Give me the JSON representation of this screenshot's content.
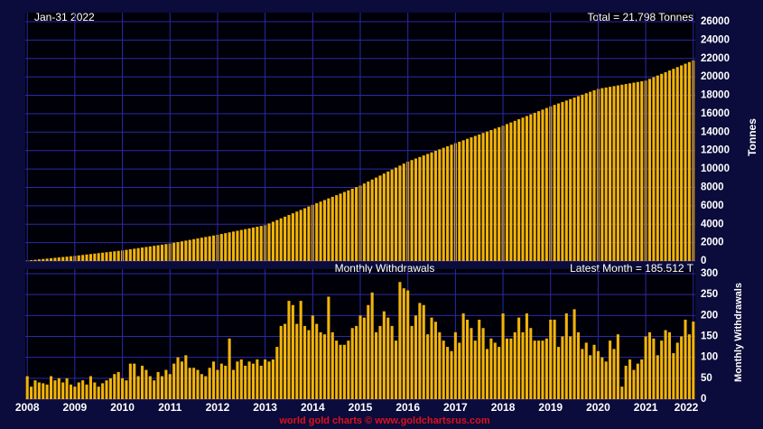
{
  "chart_data": [
    {
      "type": "bar",
      "date": "Jan-31  2022",
      "annotation": "Total = 21,798 Tonnes",
      "ylabel": "Tonnes",
      "color": "#f2b40a",
      "ylim": [
        0,
        26000
      ],
      "yticks": [
        0,
        2000,
        4000,
        6000,
        8000,
        10000,
        12000,
        14000,
        16000,
        18000,
        20000,
        22000,
        24000,
        26000
      ],
      "grid": true,
      "values": [
        50,
        93,
        135,
        178,
        220,
        263,
        305,
        348,
        390,
        433,
        475,
        518,
        560,
        609,
        658,
        708,
        757,
        806,
        855,
        904,
        954,
        1003,
        1052,
        1101,
        1150,
        1213,
        1275,
        1338,
        1400,
        1463,
        1525,
        1588,
        1650,
        1713,
        1775,
        1838,
        1900,
        1979,
        2058,
        2138,
        2217,
        2296,
        2375,
        2454,
        2533,
        2613,
        2692,
        2771,
        2850,
        2938,
        3025,
        3113,
        3200,
        3288,
        3375,
        3463,
        3550,
        3638,
        3725,
        3813,
        3900,
        4083,
        4267,
        4450,
        4633,
        4817,
        5000,
        5183,
        5367,
        5550,
        5733,
        5917,
        6100,
        6275,
        6450,
        6625,
        6800,
        6975,
        7150,
        7325,
        7500,
        7675,
        7850,
        8025,
        8200,
        8417,
        8633,
        8850,
        9067,
        9283,
        9500,
        9717,
        9933,
        10150,
        10367,
        10583,
        10800,
        10967,
        11133,
        11300,
        11467,
        11633,
        11800,
        11967,
        12133,
        12300,
        12467,
        12633,
        12800,
        12958,
        13117,
        13275,
        13433,
        13592,
        13750,
        13908,
        14067,
        14225,
        14383,
        14542,
        14700,
        14875,
        15050,
        15225,
        15400,
        15575,
        15750,
        15925,
        16100,
        16275,
        16450,
        16625,
        16800,
        16958,
        17117,
        17275,
        17433,
        17592,
        17750,
        17908,
        18067,
        18225,
        18383,
        18542,
        18700,
        18775,
        18850,
        18925,
        19000,
        19075,
        19150,
        19225,
        19300,
        19375,
        19450,
        19525,
        19600,
        19783,
        19966,
        20150,
        20333,
        20516,
        20699,
        20882,
        21066,
        21249,
        21432,
        21615,
        21798
      ]
    },
    {
      "type": "bar",
      "title": "Monthly Withdrawals",
      "annotation": "Latest Month = 185.512 T",
      "ylabel": "Monthly Withdrawals",
      "color": "#f2b40a",
      "ylim": [
        0,
        300
      ],
      "yticks": [
        0,
        50,
        100,
        150,
        200,
        250,
        300
      ],
      "grid": true,
      "categories": [
        "2008",
        null,
        null,
        null,
        null,
        null,
        null,
        null,
        null,
        null,
        null,
        null,
        "2009",
        null,
        null,
        null,
        null,
        null,
        null,
        null,
        null,
        null,
        null,
        null,
        "2010",
        null,
        null,
        null,
        null,
        null,
        null,
        null,
        null,
        null,
        null,
        null,
        "2011",
        null,
        null,
        null,
        null,
        null,
        null,
        null,
        null,
        null,
        null,
        null,
        "2012",
        null,
        null,
        null,
        null,
        null,
        null,
        null,
        null,
        null,
        null,
        null,
        "2013",
        null,
        null,
        null,
        null,
        null,
        null,
        null,
        null,
        null,
        null,
        null,
        "2014",
        null,
        null,
        null,
        null,
        null,
        null,
        null,
        null,
        null,
        null,
        null,
        "2015",
        null,
        null,
        null,
        null,
        null,
        null,
        null,
        null,
        null,
        null,
        null,
        "2016",
        null,
        null,
        null,
        null,
        null,
        null,
        null,
        null,
        null,
        null,
        null,
        "2017",
        null,
        null,
        null,
        null,
        null,
        null,
        null,
        null,
        null,
        null,
        null,
        "2018",
        null,
        null,
        null,
        null,
        null,
        null,
        null,
        null,
        null,
        null,
        null,
        "2019",
        null,
        null,
        null,
        null,
        null,
        null,
        null,
        null,
        null,
        null,
        null,
        "2020",
        null,
        null,
        null,
        null,
        null,
        null,
        null,
        null,
        null,
        null,
        null,
        "2021",
        null,
        null,
        null,
        null,
        null,
        null,
        null,
        null,
        null,
        null,
        null,
        "2022"
      ],
      "values": [
        55,
        30,
        45,
        40,
        38,
        35,
        55,
        45,
        50,
        40,
        50,
        35,
        30,
        40,
        45,
        35,
        55,
        40,
        30,
        38,
        45,
        50,
        60,
        65,
        50,
        45,
        85,
        85,
        55,
        80,
        70,
        55,
        45,
        65,
        55,
        70,
        60,
        85,
        100,
        90,
        105,
        75,
        75,
        70,
        60,
        55,
        75,
        90,
        70,
        85,
        80,
        145,
        70,
        90,
        95,
        80,
        90,
        85,
        95,
        80,
        95,
        90,
        95,
        125,
        175,
        180,
        235,
        225,
        180,
        235,
        175,
        165,
        200,
        180,
        160,
        155,
        245,
        160,
        140,
        130,
        130,
        140,
        170,
        175,
        200,
        195,
        225,
        255,
        160,
        175,
        210,
        195,
        175,
        140,
        280,
        265,
        260,
        175,
        200,
        230,
        225,
        155,
        195,
        185,
        160,
        140,
        125,
        115,
        160,
        135,
        205,
        190,
        170,
        140,
        190,
        170,
        120,
        145,
        135,
        125,
        205,
        145,
        145,
        160,
        195,
        160,
        205,
        170,
        140,
        140,
        140,
        145,
        190,
        190,
        125,
        150,
        205,
        150,
        215,
        160,
        120,
        135,
        105,
        130,
        115,
        100,
        90,
        140,
        120,
        155,
        30,
        80,
        95,
        70,
        85,
        95,
        150,
        160,
        145,
        105,
        140,
        165,
        160,
        110,
        135,
        150,
        190,
        155,
        185.512
      ]
    }
  ],
  "footer": "world gold charts © www.goldchartsrus.com"
}
